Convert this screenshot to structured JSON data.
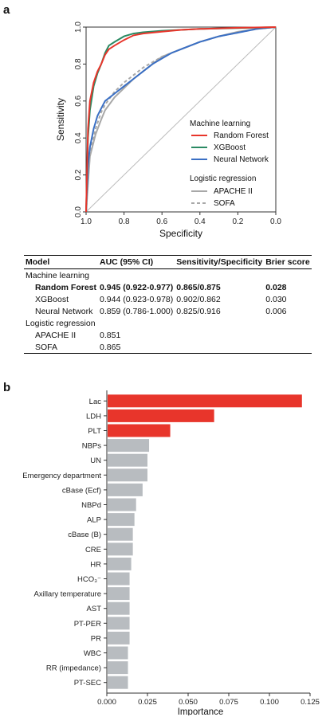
{
  "panel_a": {
    "letter": "a",
    "chart_data": {
      "type": "line",
      "xlabel": "Specificity",
      "ylabel": "Sensitivity",
      "xlim": [
        1.0,
        0.0
      ],
      "ylim": [
        0.0,
        1.0
      ],
      "x_ticks": [
        "1.0",
        "0.8",
        "0.6",
        "0.4",
        "0.2",
        "0.0"
      ],
      "y_ticks": [
        "0.0",
        "0.2",
        "0.4",
        "0.6",
        "0.8",
        "1.0"
      ],
      "legend": {
        "position": "bottom-right",
        "group1_title": "Machine learning",
        "group2_title": "Logistic regression"
      },
      "series": [
        {
          "name": "Random Forest",
          "color": "#e8352b",
          "dash": false,
          "points": [
            [
              1.0,
              0.0
            ],
            [
              0.99,
              0.45
            ],
            [
              0.98,
              0.6
            ],
            [
              0.96,
              0.7
            ],
            [
              0.94,
              0.76
            ],
            [
              0.92,
              0.8
            ],
            [
              0.9,
              0.85
            ],
            [
              0.88,
              0.88
            ],
            [
              0.85,
              0.9
            ],
            [
              0.8,
              0.93
            ],
            [
              0.75,
              0.955
            ],
            [
              0.7,
              0.965
            ],
            [
              0.6,
              0.975
            ],
            [
              0.5,
              0.985
            ],
            [
              0.4,
              0.99
            ],
            [
              0.3,
              0.993
            ],
            [
              0.2,
              0.996
            ],
            [
              0.0,
              1.0
            ]
          ]
        },
        {
          "name": "XGBoost",
          "color": "#2a8a63",
          "dash": false,
          "points": [
            [
              1.0,
              0.0
            ],
            [
              0.99,
              0.4
            ],
            [
              0.98,
              0.55
            ],
            [
              0.96,
              0.68
            ],
            [
              0.94,
              0.75
            ],
            [
              0.92,
              0.8
            ],
            [
              0.9,
              0.86
            ],
            [
              0.88,
              0.9
            ],
            [
              0.85,
              0.92
            ],
            [
              0.8,
              0.95
            ],
            [
              0.75,
              0.965
            ],
            [
              0.7,
              0.972
            ],
            [
              0.6,
              0.98
            ],
            [
              0.5,
              0.985
            ],
            [
              0.4,
              0.99
            ],
            [
              0.2,
              0.995
            ],
            [
              0.0,
              1.0
            ]
          ]
        },
        {
          "name": "Neural Network",
          "color": "#3a6fc4",
          "dash": false,
          "points": [
            [
              1.0,
              0.0
            ],
            [
              0.99,
              0.25
            ],
            [
              0.98,
              0.35
            ],
            [
              0.96,
              0.45
            ],
            [
              0.94,
              0.52
            ],
            [
              0.92,
              0.56
            ],
            [
              0.9,
              0.6
            ],
            [
              0.85,
              0.64
            ],
            [
              0.8,
              0.68
            ],
            [
              0.75,
              0.72
            ],
            [
              0.7,
              0.76
            ],
            [
              0.65,
              0.8
            ],
            [
              0.6,
              0.83
            ],
            [
              0.55,
              0.86
            ],
            [
              0.5,
              0.88
            ],
            [
              0.4,
              0.92
            ],
            [
              0.3,
              0.95
            ],
            [
              0.2,
              0.97
            ],
            [
              0.1,
              0.99
            ],
            [
              0.0,
              1.0
            ]
          ]
        },
        {
          "name": "APACHE II",
          "color": "#a8a8a8",
          "dash": false,
          "points": [
            [
              1.0,
              0.0
            ],
            [
              0.98,
              0.3
            ],
            [
              0.95,
              0.42
            ],
            [
              0.92,
              0.5
            ],
            [
              0.9,
              0.55
            ],
            [
              0.85,
              0.62
            ],
            [
              0.8,
              0.67
            ],
            [
              0.75,
              0.72
            ],
            [
              0.7,
              0.76
            ],
            [
              0.65,
              0.8
            ],
            [
              0.6,
              0.84
            ],
            [
              0.55,
              0.86
            ],
            [
              0.5,
              0.88
            ],
            [
              0.4,
              0.92
            ],
            [
              0.3,
              0.95
            ],
            [
              0.2,
              0.975
            ],
            [
              0.1,
              0.99
            ],
            [
              0.0,
              1.0
            ]
          ]
        },
        {
          "name": "SOFA",
          "color": "#a8a8a8",
          "dash": true,
          "points": [
            [
              1.0,
              0.0
            ],
            [
              0.98,
              0.32
            ],
            [
              0.95,
              0.45
            ],
            [
              0.92,
              0.54
            ],
            [
              0.9,
              0.58
            ],
            [
              0.85,
              0.65
            ],
            [
              0.8,
              0.7
            ],
            [
              0.75,
              0.74
            ],
            [
              0.7,
              0.78
            ],
            [
              0.65,
              0.81
            ],
            [
              0.6,
              0.84
            ],
            [
              0.5,
              0.88
            ],
            [
              0.4,
              0.92
            ],
            [
              0.3,
              0.95
            ],
            [
              0.2,
              0.97
            ],
            [
              0.1,
              0.99
            ],
            [
              0.0,
              1.0
            ]
          ]
        }
      ]
    },
    "table": {
      "headers": [
        "Model",
        "AUC (95% CI)",
        "Sensitivity/Specificity",
        "Brier score"
      ],
      "group1": "Machine learning",
      "group2": "Logistic regression",
      "rows": [
        {
          "model": "Random Forest",
          "auc": "0.945 (0.922-0.977)",
          "sens_spec": "0.865/0.875",
          "brier": "0.028"
        },
        {
          "model": "XGBoost",
          "auc": "0.944 (0.923-0.978)",
          "sens_spec": "0.902/0.862",
          "brier": "0.030"
        },
        {
          "model": "Neural Network",
          "auc": "0.859 (0.786-1.000)",
          "sens_spec": "0.825/0.916",
          "brier": "0.006"
        },
        {
          "model": "APACHE II",
          "auc": "0.851",
          "sens_spec": "",
          "brier": ""
        },
        {
          "model": "SOFA",
          "auc": "0.865",
          "sens_spec": "",
          "brier": ""
        }
      ]
    }
  },
  "panel_b": {
    "letter": "b",
    "chart_data": {
      "type": "bar",
      "orientation": "horizontal",
      "xlabel": "Importance",
      "xlim": [
        0.0,
        0.125
      ],
      "x_ticks": [
        "0.000",
        "0.025",
        "0.050",
        "0.075",
        "0.100",
        "0.125"
      ],
      "highlight_color": "#e8352b",
      "base_color": "#b8bcc0",
      "categories": [
        "Lac",
        "LDH",
        "PLT",
        "NBPs",
        "UN",
        "Emergency department",
        "cBase (Ecf)",
        "NBPd",
        "ALP",
        "cBase (B)",
        "CRE",
        "HR",
        "HCO₃⁻",
        "Axillary temperature",
        "AST",
        "PT-PER",
        "PR",
        "WBC",
        "RR (impedance)",
        "PT-SEC"
      ],
      "values": [
        0.12,
        0.066,
        0.039,
        0.026,
        0.025,
        0.025,
        0.022,
        0.018,
        0.017,
        0.016,
        0.016,
        0.015,
        0.014,
        0.014,
        0.014,
        0.014,
        0.014,
        0.013,
        0.013,
        0.013
      ],
      "highlighted": [
        true,
        true,
        true,
        false,
        false,
        false,
        false,
        false,
        false,
        false,
        false,
        false,
        false,
        false,
        false,
        false,
        false,
        false,
        false,
        false
      ]
    }
  }
}
